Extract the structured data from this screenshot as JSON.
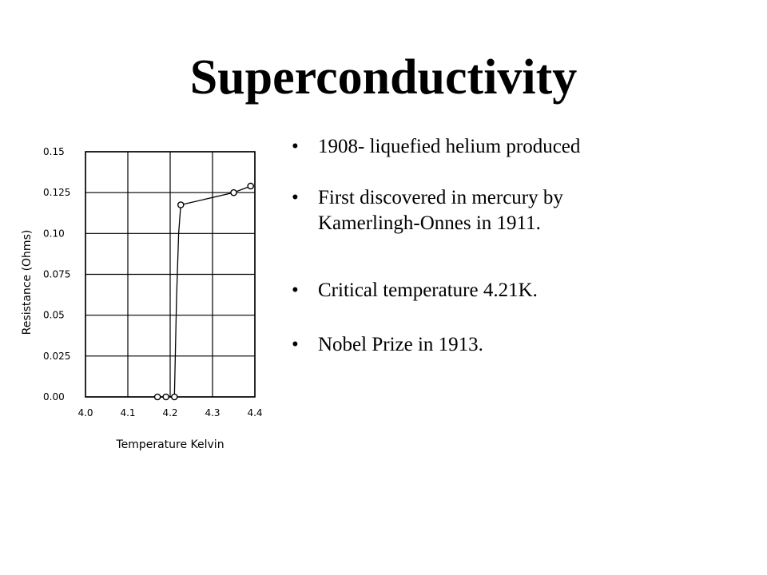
{
  "slide": {
    "title": "Superconductivity",
    "bullet_symbol": "•",
    "bullets": [
      {
        "line1": "1908- liquefied helium produced"
      },
      {
        "line1": "First discovered in mercury by",
        "line2": "Kamerlingh-Onnes  in 1911."
      },
      {
        "line1": "Critical temperature 4.21K."
      },
      {
        "line1": "Nobel Prize in  1913."
      }
    ]
  },
  "chart_data": {
    "type": "line",
    "xlabel": "Temperature Kelvin",
    "ylabel": "Resistance (Ohms)",
    "xlim": [
      4.0,
      4.4
    ],
    "ylim": [
      0.0,
      0.15
    ],
    "x_ticks": [
      {
        "value": 4.0,
        "label": "4.0"
      },
      {
        "value": 4.1,
        "label": "4.1"
      },
      {
        "value": 4.2,
        "label": "4.2"
      },
      {
        "value": 4.3,
        "label": "4.3"
      },
      {
        "value": 4.4,
        "label": "4.4"
      }
    ],
    "y_ticks": [
      {
        "value": 0.0,
        "label": "0.00"
      },
      {
        "value": 0.025,
        "label": "0.025"
      },
      {
        "value": 0.05,
        "label": "0.05"
      },
      {
        "value": 0.075,
        "label": "0.075"
      },
      {
        "value": 0.1,
        "label": "0.10"
      },
      {
        "value": 0.125,
        "label": "0.125"
      },
      {
        "value": 0.15,
        "label": "0.15"
      }
    ],
    "grid": true,
    "x": [
      4.17,
      4.19,
      4.21,
      4.215,
      4.22,
      4.225,
      4.35,
      4.39
    ],
    "y": [
      0.0,
      0.0,
      0.0,
      0.06,
      0.1,
      0.1175,
      0.125,
      0.129
    ],
    "markers": [
      {
        "x": 4.17,
        "y": 0.0
      },
      {
        "x": 4.19,
        "y": 0.0
      },
      {
        "x": 4.21,
        "y": 0.0
      },
      {
        "x": 4.225,
        "y": 0.1175
      },
      {
        "x": 4.35,
        "y": 0.125
      },
      {
        "x": 4.39,
        "y": 0.129
      }
    ],
    "line_color": "#000000",
    "grid_color": "#000000"
  }
}
